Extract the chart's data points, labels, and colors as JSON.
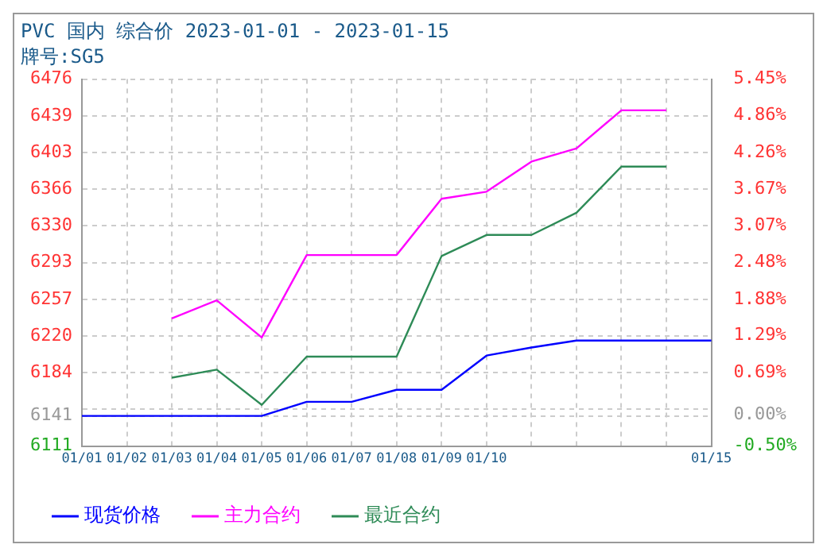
{
  "chart_data": {
    "type": "line",
    "title": "PVC 国内 综合价 2023-01-01 - 2023-01-15",
    "subtitle": "牌号:SG5",
    "categories": [
      "01/01",
      "01/02",
      "01/03",
      "01/04",
      "01/05",
      "01/06",
      "01/07",
      "01/08",
      "01/09",
      "01/10",
      null,
      null,
      null,
      null,
      "01/15"
    ],
    "series": [
      {
        "name": "现货价格",
        "color": "#0000ff",
        "values": [
          6141,
          6141,
          6141,
          6141,
          6141,
          6155,
          6155,
          6167,
          6167,
          6201,
          6209,
          6216,
          6216,
          6216,
          6216
        ]
      },
      {
        "name": "主力合约",
        "color": "#ff00ff",
        "values": [
          null,
          null,
          6238,
          6256,
          6219,
          6301,
          6301,
          6301,
          6357,
          6364,
          6394,
          6407,
          6445,
          6445,
          null
        ]
      },
      {
        "name": "最近合约",
        "color": "#2e8b57",
        "values": [
          null,
          null,
          6179,
          6187,
          6152,
          6200,
          6200,
          6200,
          6300,
          6321,
          6321,
          6343,
          6389,
          6389,
          null
        ]
      }
    ],
    "ylim": [
      6111,
      6476
    ],
    "yticks": [
      6111,
      6141,
      {
        "value": 6147.5,
        "label": null
      },
      6184,
      {
        "value": 6220.5,
        "label": "6220"
      },
      6257,
      {
        "value": 6293.5,
        "label": "6293"
      },
      6330,
      {
        "value": 6366.5,
        "label": "6366"
      },
      6403,
      {
        "value": 6439.5,
        "label": "6439"
      },
      6476
    ],
    "y2lim": [
      -0.5,
      5.45
    ],
    "y2ticks": [
      {
        "value": -0.5,
        "label": "-0.50%"
      },
      {
        "value": 0,
        "label": "0.00%"
      },
      {
        "value": 0.69,
        "label": "0.69%"
      },
      {
        "value": 1.29,
        "label": "1.29%"
      },
      {
        "value": 1.88,
        "label": "1.88%"
      },
      {
        "value": 2.48,
        "label": "2.48%"
      },
      {
        "value": 3.07,
        "label": "3.07%"
      },
      {
        "value": 3.67,
        "label": "3.67%"
      },
      {
        "value": 4.26,
        "label": "4.26%"
      },
      {
        "value": 4.86,
        "label": "4.86%"
      },
      {
        "value": 5.45,
        "label": "5.45%"
      }
    ],
    "grid": true,
    "legend": "bottom",
    "marker": "none",
    "line_style": "solid"
  }
}
